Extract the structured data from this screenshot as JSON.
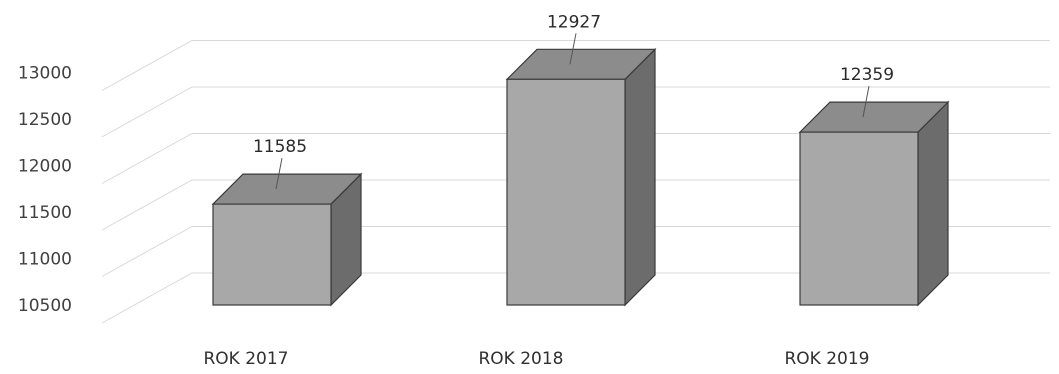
{
  "chart_data": {
    "type": "bar",
    "style": "3d",
    "categories": [
      "ROK 2017",
      "ROK 2018",
      "ROK 2019"
    ],
    "values": [
      11585,
      12927,
      12359
    ],
    "y_ticks": [
      "10500",
      "11000",
      "11500",
      "12000",
      "12500",
      "13000"
    ],
    "ylim": [
      10500,
      13000
    ],
    "grid": true,
    "legend": "none",
    "colors": {
      "bar_front": "#a8a8a8",
      "bar_top": "#8c8c8c",
      "bar_side": "#6c6c6c",
      "bar_edge": "#3a3a3a",
      "grid": "#d8d8d8"
    }
  }
}
